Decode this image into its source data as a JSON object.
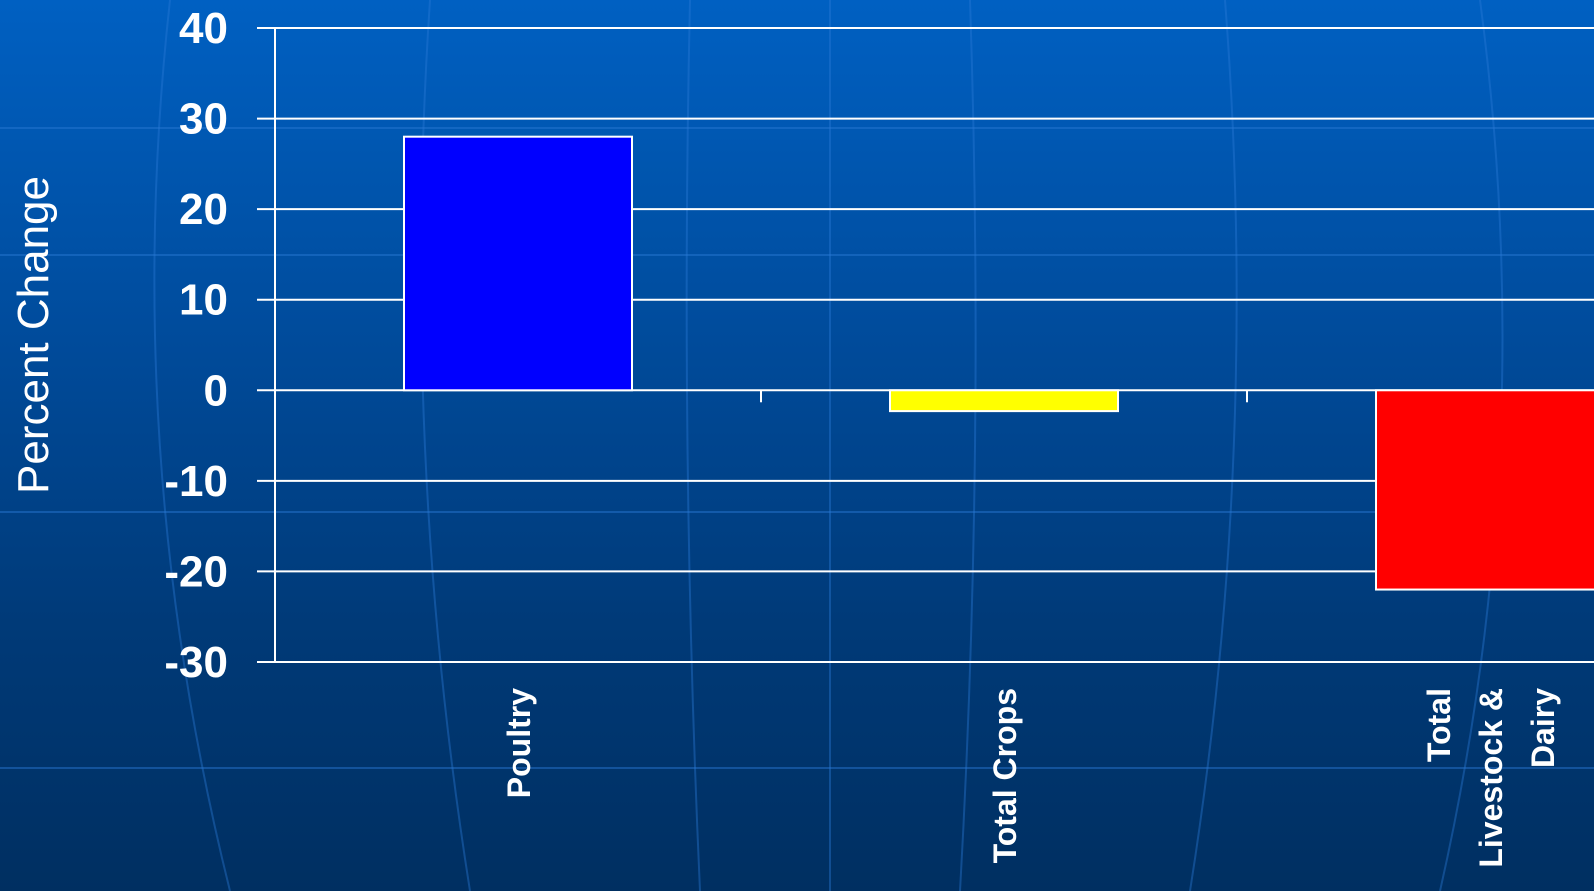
{
  "chart_data": {
    "type": "bar",
    "ylabel": "Percent Change",
    "xlabel": "",
    "categories": [
      [
        "Poultry"
      ],
      [
        "Total Crops"
      ],
      [
        "Total",
        "Livestock &",
        "Dairy"
      ]
    ],
    "values": [
      28,
      -2.3,
      -22
    ],
    "colors": [
      "#0000ff",
      "#ffff00",
      "#ff0000"
    ],
    "ylim": [
      -30,
      40
    ],
    "yticks": [
      40,
      30,
      20,
      10,
      0,
      -10,
      -20,
      -30
    ],
    "grid": true,
    "legend": "none"
  }
}
